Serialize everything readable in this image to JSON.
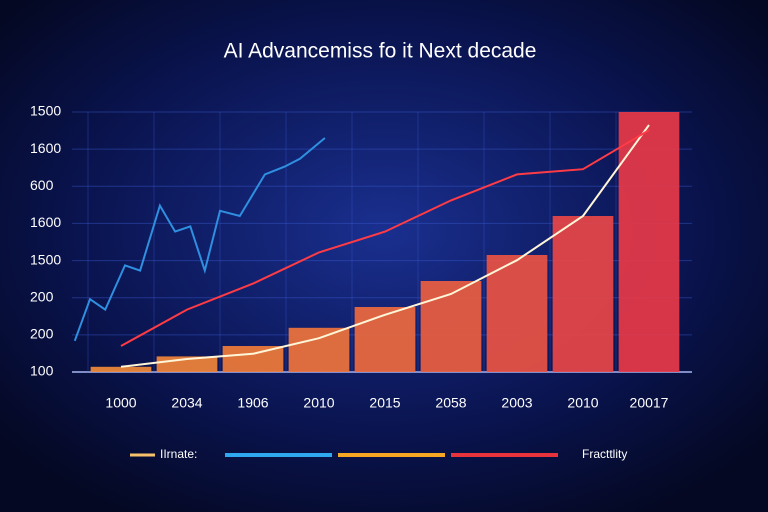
{
  "chart_data": {
    "type": "bar",
    "title": "AI Advancemiss fo it Next decade",
    "categories": [
      "1000",
      "2034",
      "1906",
      "2010",
      "2015",
      "2058",
      "2003",
      "2010",
      "20017"
    ],
    "values": [
      2,
      6,
      10,
      17,
      25,
      35,
      45,
      60,
      100
    ],
    "colors": [
      "#f08a3a",
      "#f2853a",
      "#f07c3a",
      "#ef743c",
      "#ee6a3e",
      "#ec5e40",
      "#ea5243",
      "#e84646",
      "#e83a48"
    ],
    "y_axis_labels": [
      "100",
      "200",
      "200",
      "1500",
      "1600",
      "600",
      "1600",
      "1500"
    ],
    "ylim": [
      0,
      100
    ],
    "grid": true,
    "series": [
      {
        "name": "IIrnate:",
        "color": "#fff6d8",
        "values": [
          2,
          5,
          7,
          13,
          22,
          30,
          43,
          60,
          95
        ]
      },
      {
        "name": "Fracttlity",
        "color": "#ff3b45",
        "values": [
          10,
          24,
          34,
          46,
          54,
          66,
          76,
          78,
          93
        ]
      },
      {
        "color": "#2f8fe0",
        "x": [
          -0.7,
          -0.47,
          -0.24,
          0.06,
          0.29,
          0.59,
          0.82,
          1.05,
          1.27,
          1.5,
          1.8,
          2.18,
          2.48,
          2.71,
          3.09
        ],
        "values": [
          12,
          28,
          24,
          41,
          39,
          64,
          54,
          56,
          39,
          62,
          60,
          76,
          79,
          82,
          90
        ]
      }
    ],
    "legend_swatches": [
      "#2fa8f0",
      "#f5a623",
      "#e8323c"
    ]
  }
}
